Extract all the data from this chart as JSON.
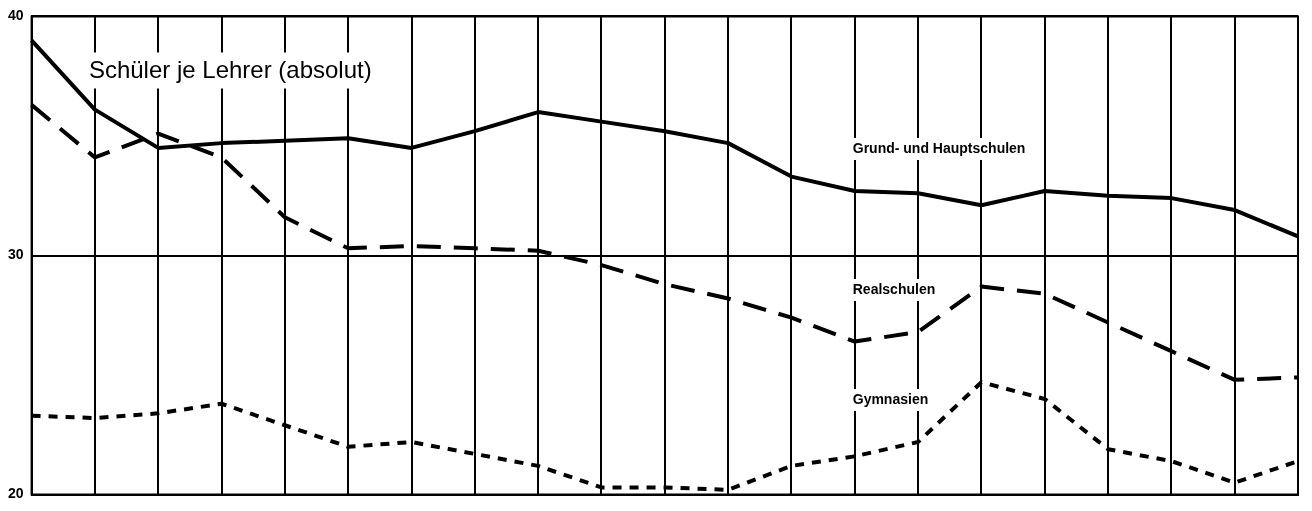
{
  "chart_data": {
    "type": "line",
    "title": "Schüler je Lehrer (absolut)",
    "categories": [
      null,
      null,
      null,
      null,
      null,
      null,
      null,
      null,
      null,
      null,
      null,
      null,
      null,
      null,
      null,
      null,
      null,
      null,
      null,
      null,
      null
    ],
    "series": [
      {
        "name": "Grund- und Hauptschulen",
        "color": "#000000",
        "line_style": "solid",
        "values": [
          39.0,
          36.1,
          34.5,
          34.7,
          34.8,
          34.9,
          34.5,
          35.2,
          36.0,
          35.6,
          35.2,
          34.7,
          33.3,
          32.7,
          32.6,
          32.1,
          32.7,
          32.5,
          32.4,
          31.9,
          30.8
        ]
      },
      {
        "name": "Realschulen",
        "color": "#000000",
        "line_style": "dashed",
        "values": [
          36.3,
          34.1,
          35.1,
          34.1,
          31.6,
          30.3,
          30.4,
          30.3,
          30.2,
          29.6,
          28.8,
          28.2,
          27.4,
          26.4,
          26.8,
          28.7,
          28.4,
          27.2,
          26.0,
          24.8,
          24.9
        ]
      },
      {
        "name": "Gymnasien",
        "color": "#000000",
        "line_style": "dotted",
        "values": [
          23.3,
          23.2,
          23.4,
          23.8,
          22.9,
          22.0,
          22.2,
          21.7,
          21.2,
          20.3,
          20.3,
          20.2,
          21.2,
          21.6,
          22.2,
          24.7,
          24.0,
          21.9,
          21.4,
          20.5,
          21.4
        ]
      }
    ],
    "ylim": [
      20,
      40
    ],
    "yticks": [
      20,
      30,
      40
    ],
    "grid": true,
    "legend": false,
    "tick_labels": "y",
    "marker": "none"
  }
}
